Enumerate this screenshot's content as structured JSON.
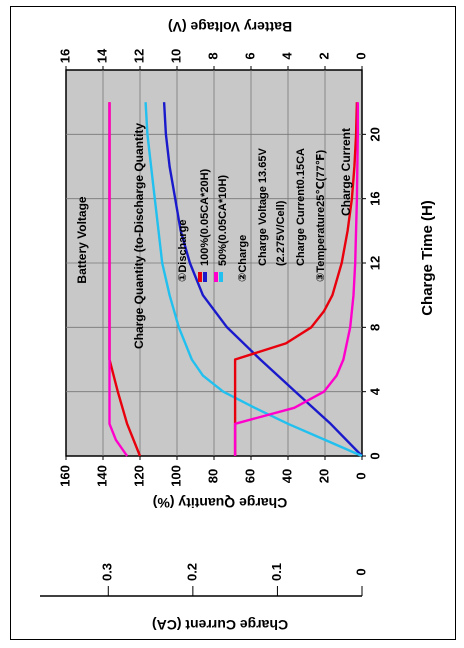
{
  "chart_data": {
    "type": "line",
    "rotation": "90deg-clockwise",
    "x_axis": {
      "label": "Charge Time (H)",
      "ticks": [
        "0",
        "4",
        "8",
        "12",
        "16",
        "20"
      ],
      "range": [
        0,
        24
      ]
    },
    "axes": {
      "battery_voltage": {
        "label": "Battery Voltage (V)",
        "ticks": [
          "16",
          "14",
          "12",
          "10",
          "8",
          "6",
          "4",
          "2",
          "0"
        ],
        "range": [
          0,
          16
        ]
      },
      "charge_quantity": {
        "label": "Charge Quantity (%)",
        "ticks": [
          "160",
          "140",
          "120",
          "100",
          "80",
          "60",
          "40",
          "20",
          "0"
        ],
        "range": [
          0,
          160
        ]
      },
      "charge_current": {
        "label": "Charge Current (CA)",
        "ticks": [
          "0.3",
          "0.2",
          "0.1",
          "0"
        ],
        "range": [
          0,
          0.35
        ]
      }
    },
    "annotations": {
      "battery_voltage": "Battery Voltage",
      "charge_quantity": "Charge Quantity (to-Discharge Quantity",
      "charge_current": "Charge Current"
    },
    "legend": {
      "discharge_title": "①Discharge",
      "discharge_100": "100%(0.05CA*20H)",
      "discharge_50": "50%(0.05CA*10H)",
      "charge_title": "②Charge",
      "charge_voltage": "Charge Voltage 13.65V",
      "charge_voltage_cell": "(2.275V/Cell)",
      "charge_current": "Charge Current0.15CA",
      "temperature": "③Temperature25℃(77℉)"
    },
    "series": [
      {
        "group": "battery_voltage",
        "color": "#e8000d",
        "x": [
          0,
          2,
          4,
          6,
          22
        ],
        "y": [
          12.0,
          12.7,
          13.2,
          13.65,
          13.65
        ]
      },
      {
        "group": "battery_voltage",
        "color": "#ff00cc",
        "x": [
          0,
          1,
          2,
          22
        ],
        "y": [
          12.7,
          13.3,
          13.65,
          13.65
        ]
      },
      {
        "group": "charge_quantity",
        "color": "#1a1acc",
        "x": [
          0,
          2,
          4,
          6,
          8,
          10,
          12,
          14,
          16,
          18,
          20,
          22
        ],
        "y": [
          0,
          17,
          36,
          55,
          73,
          86,
          93,
          98,
          101,
          104,
          106,
          107
        ]
      },
      {
        "group": "charge_quantity",
        "color": "#22c0ee",
        "x": [
          0,
          1,
          2,
          3,
          4,
          5,
          6,
          8,
          10,
          12,
          14,
          16,
          18,
          20,
          22
        ],
        "y": [
          0,
          20,
          40,
          58,
          75,
          86,
          92,
          99,
          104,
          108,
          110,
          112,
          114,
          116,
          117
        ]
      },
      {
        "group": "charge_current",
        "color": "#e8000d",
        "x": [
          0,
          6,
          7,
          8,
          9,
          10,
          12,
          14,
          16,
          18,
          20,
          22
        ],
        "y": [
          0.15,
          0.15,
          0.09,
          0.06,
          0.045,
          0.035,
          0.024,
          0.017,
          0.012,
          0.009,
          0.007,
          0.006
        ]
      },
      {
        "group": "charge_current",
        "color": "#ff00cc",
        "x": [
          0,
          2,
          3,
          4,
          5,
          6,
          8,
          10,
          12,
          16,
          20,
          22
        ],
        "y": [
          0.15,
          0.15,
          0.08,
          0.045,
          0.03,
          0.022,
          0.014,
          0.01,
          0.008,
          0.006,
          0.005,
          0.005
        ]
      }
    ],
    "grid": true
  }
}
